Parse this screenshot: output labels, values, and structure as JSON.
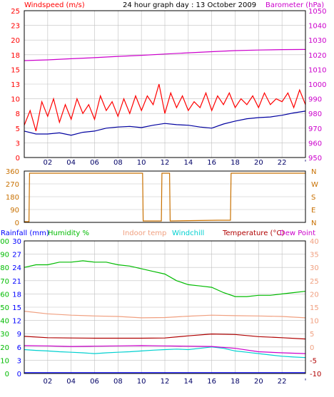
{
  "header": {
    "title": "24 hour graph day : 13 October 2009",
    "windspeed_label": "Windspeed (m/s)",
    "barometer_label": "Barometer (hPa)"
  },
  "legend3": {
    "rainfall": "Rainfall (mm)",
    "humidity": "Humidity %",
    "indoor": "Indoor temp",
    "windchill": "Windchill",
    "temperature": "Temperature (°C)",
    "dewpoint": "Dew Point"
  },
  "colors": {
    "windspeed": "#ff0000",
    "windavg": "#0000a0",
    "barometer": "#cc00cc",
    "direction": "#c87000",
    "rainfall": "#0000ff",
    "humidity": "#00bb00",
    "indoor": "#f0a080",
    "windchill": "#00d0d0",
    "temperature": "#b00000",
    "dewpoint": "#cc00cc",
    "grid": "#c0c0c0"
  },
  "chart_data": [
    {
      "type": "line",
      "panel": "wind-barometer",
      "xlabels": [
        "02",
        "04",
        "06",
        "08",
        "10",
        "12",
        "14",
        "16",
        "18",
        "20",
        "22",
        "'"
      ],
      "x_hours": [
        2,
        4,
        6,
        8,
        10,
        12,
        14,
        16,
        18,
        20,
        22,
        24
      ],
      "xlim": [
        0,
        24
      ],
      "left_axis": {
        "label": "Windspeed (m/s)",
        "ticks": [
          0,
          3,
          5,
          8,
          10,
          13,
          15,
          18,
          20,
          23,
          25
        ],
        "ylim": [
          0,
          25
        ]
      },
      "right_axis": {
        "label": "Barometer (hPa)",
        "ticks": [
          950,
          960,
          970,
          980,
          990,
          1000,
          1010,
          1020,
          1030,
          1040,
          1050
        ],
        "ylim": [
          950,
          1050
        ]
      },
      "series": [
        {
          "name": "Windspeed (m/s)",
          "axis": "left",
          "x": [
            0,
            0.5,
            1,
            1.5,
            2,
            2.5,
            3,
            3.5,
            4,
            4.5,
            5,
            5.5,
            6,
            6.5,
            7,
            7.5,
            8,
            8.5,
            9,
            9.5,
            10,
            10.5,
            11,
            11.5,
            12,
            12.5,
            13,
            13.5,
            14,
            14.5,
            15,
            15.5,
            16,
            16.5,
            17,
            17.5,
            18,
            18.5,
            19,
            19.5,
            20,
            20.5,
            21,
            21.5,
            22,
            22.5,
            23,
            23.5,
            24
          ],
          "y": [
            5.5,
            8,
            4.5,
            9.5,
            7,
            10,
            6,
            9,
            6.5,
            10,
            7.5,
            9,
            6.5,
            10.5,
            8,
            9.5,
            7,
            10,
            7.5,
            10.5,
            8,
            10.5,
            9,
            12.5,
            7.5,
            11,
            8.5,
            10.5,
            8,
            9.5,
            8.5,
            11,
            8,
            10.5,
            9,
            11,
            8.5,
            10,
            9,
            10.5,
            8.5,
            11,
            9,
            10,
            9.5,
            11,
            8.5,
            11.5,
            9
          ]
        },
        {
          "name": "Average wind",
          "axis": "left",
          "x": [
            0,
            1,
            2,
            3,
            4,
            5,
            6,
            7,
            8,
            9,
            10,
            11,
            12,
            13,
            14,
            15,
            16,
            17,
            18,
            19,
            20,
            21,
            22,
            23,
            24
          ],
          "y": [
            4.5,
            4,
            4,
            4.2,
            3.8,
            4.3,
            4.5,
            5,
            5.2,
            5.3,
            5.1,
            5.5,
            5.8,
            5.6,
            5.5,
            5.2,
            5,
            5.7,
            6.2,
            6.6,
            6.8,
            6.9,
            7.2,
            7.6,
            7.9
          ]
        },
        {
          "name": "Barometer (hPa)",
          "axis": "right",
          "x": [
            0,
            2,
            4,
            6,
            8,
            10,
            12,
            14,
            16,
            18,
            20,
            22,
            24
          ],
          "y": [
            1016,
            1016.5,
            1017.3,
            1018,
            1018.9,
            1019.6,
            1020.5,
            1021.3,
            1022.1,
            1022.8,
            1023.2,
            1023.5,
            1023.6
          ]
        }
      ]
    },
    {
      "type": "line",
      "panel": "wind-direction",
      "left_axis": {
        "ticks": [
          0,
          90,
          180,
          270,
          360
        ],
        "ylim": [
          0,
          360
        ]
      },
      "right_axis": {
        "ticks": [
          "N",
          "E",
          "S",
          "W",
          "N"
        ]
      },
      "series": [
        {
          "name": "Wind direction",
          "x": [
            0,
            0.4,
            0.45,
            10.1,
            10.15,
            11.7,
            11.75,
            12.4,
            12.45,
            16.5,
            17.6,
            17.65,
            24
          ],
          "y": [
            5,
            5,
            345,
            345,
            10,
            10,
            345,
            345,
            10,
            15,
            15,
            345,
            345
          ]
        }
      ]
    },
    {
      "type": "line",
      "panel": "temp-humidity-rain",
      "left_axis_rain": {
        "label": "Rainfall (mm)",
        "ticks": [
          0,
          3,
          6,
          9,
          12,
          15,
          18,
          21,
          24,
          27,
          30
        ],
        "ylim": [
          0,
          30
        ]
      },
      "left_axis_humidity": {
        "label": "Humidity %",
        "ticks": [
          0,
          10,
          20,
          30,
          40,
          50,
          60,
          70,
          80,
          90,
          100
        ],
        "ylim": [
          0,
          100
        ]
      },
      "right_axis": {
        "label": "Temperature (°C)",
        "ticks": [
          -10,
          -5,
          0,
          5,
          10,
          15,
          20,
          25,
          30,
          35,
          40
        ],
        "ylim": [
          -10,
          40
        ]
      },
      "series": [
        {
          "name": "Rainfall (mm)",
          "axis": "rain",
          "x": [
            0,
            24
          ],
          "y": [
            0.2,
            0.2
          ]
        },
        {
          "name": "Humidity %",
          "axis": "humidity",
          "x": [
            0,
            1,
            2,
            3,
            4,
            5,
            6,
            7,
            8,
            9,
            10,
            11,
            12,
            13,
            14,
            15,
            16,
            17,
            18,
            19,
            20,
            21,
            22,
            23,
            24
          ],
          "y": [
            80,
            82,
            82,
            84,
            84,
            85,
            84,
            84,
            82,
            81,
            79,
            77,
            75,
            70,
            67,
            66,
            65,
            61,
            58,
            58,
            59,
            59,
            60,
            61,
            62
          ]
        },
        {
          "name": "Indoor temp",
          "axis": "temp",
          "x": [
            0,
            2,
            4,
            6,
            8,
            10,
            12,
            14,
            16,
            18,
            20,
            22,
            24
          ],
          "y": [
            13.5,
            12.5,
            12,
            11.7,
            11.5,
            11,
            11.1,
            11.6,
            12,
            11.8,
            11.7,
            11.5,
            11
          ]
        },
        {
          "name": "Windchill",
          "axis": "temp",
          "x": [
            0,
            1,
            2,
            3,
            4,
            5,
            6,
            7,
            8,
            9,
            10,
            11,
            12,
            13,
            14,
            15,
            16,
            17,
            18,
            19,
            20,
            21,
            22,
            23,
            24
          ],
          "y": [
            -1,
            -1.3,
            -1.5,
            -1.8,
            -2,
            -2.2,
            -2.5,
            -2.2,
            -2,
            -1.8,
            -1.5,
            -1.2,
            -1,
            -0.8,
            -1,
            -0.5,
            0,
            -0.5,
            -1.5,
            -2,
            -2.5,
            -3,
            -3.5,
            -3.8,
            -4
          ]
        },
        {
          "name": "Temperature (°C)",
          "axis": "temp",
          "x": [
            0,
            2,
            4,
            6,
            8,
            10,
            12,
            14,
            16,
            18,
            20,
            22,
            24
          ],
          "y": [
            4,
            3.5,
            3.4,
            3.3,
            3.3,
            3.3,
            3.4,
            4.2,
            4.9,
            4.7,
            3.9,
            3.5,
            3
          ]
        },
        {
          "name": "Dew Point",
          "axis": "temp",
          "x": [
            0,
            2,
            4,
            6,
            8,
            10,
            12,
            14,
            16,
            18,
            20,
            22,
            24
          ],
          "y": [
            0.5,
            0.4,
            0.2,
            0.3,
            0.4,
            0.5,
            0.4,
            0.3,
            0.2,
            -0.5,
            -1.8,
            -2.2,
            -2.5
          ]
        }
      ]
    }
  ]
}
